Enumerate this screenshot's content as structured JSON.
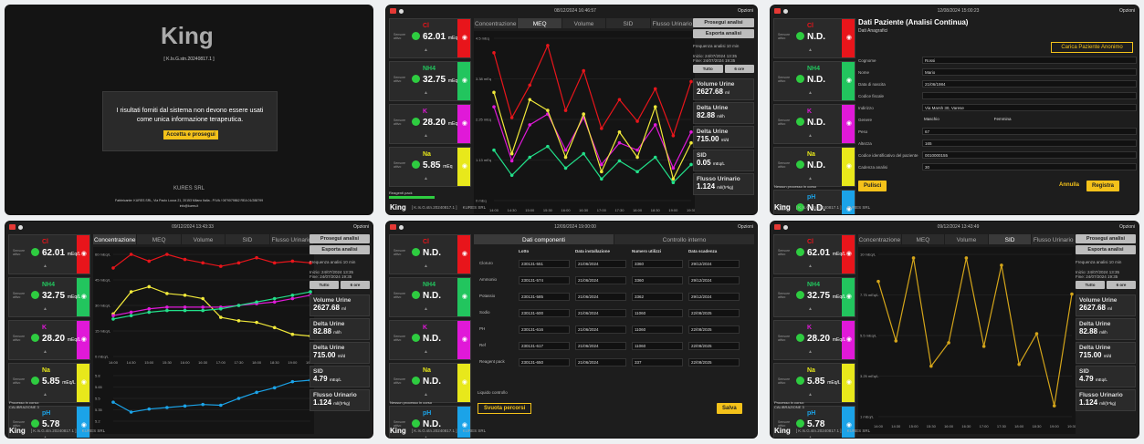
{
  "date_short": "24/07/2024 15:35:35",
  "date_p2": "08/12/2024 16:46:57",
  "date_p3": "12/08/2024 15:00:23",
  "date_p4": "09/12/2024 13:43:33",
  "date_p5": "12/09/2024 19:00:00",
  "date_p6": "09/12/2024 13:43:49",
  "options": "Opzioni",
  "splash": {
    "logo": "King",
    "version": "[ K.Is.G.stn.20240817.1 ]",
    "message": "I risultati forniti dal sistema non devono essere usati come unica informazione terapeutica.",
    "accept": "Accetta e prosegui",
    "company": "KURES SRL",
    "address": "Fabbricante: KURES SRL, Via Paolo Lucca 21, 20153 Milano Italia - P.IVA / 06°9079862 REA 01/288799",
    "email": "info@kures.it"
  },
  "ions": [
    {
      "name": "Cl",
      "value": "62.01",
      "unit": "mEq",
      "unit_l": "mEq/L",
      "color": "#e8151b"
    },
    {
      "name": "NH4",
      "value": "32.75",
      "unit": "mEq",
      "unit_l": "mEq/L",
      "color": "#22c55e"
    },
    {
      "name": "K",
      "value": "28.20",
      "unit": "mEq",
      "unit_l": "mEq/L",
      "color": "#e019d8"
    },
    {
      "name": "Na",
      "value": "5.85",
      "unit": "mEq",
      "unit_l": "mEq/L",
      "color": "#e8e81b"
    },
    {
      "name": "pH",
      "value": "5.78",
      "unit": "",
      "unit_l": "",
      "color": "#1ba3e8"
    }
  ],
  "nd": "N.D.",
  "sensor_label": "Sensore attivo",
  "tabs_analysis": [
    "Concentrazione",
    "MEQ",
    "Volume",
    "SID",
    "Flusso Urinario"
  ],
  "buttons": {
    "proceed": "Prosegui analisi",
    "export": "Esporta analisi",
    "all": "Tutto",
    "hours": "6 ore"
  },
  "freq_label": "Frequenza analisi",
  "freq_value": "10",
  "freq_unit": "min",
  "start": "Inizio: 24/07/2024 13:35",
  "end": "Fine: 24/07/2024 19:35",
  "stats": [
    {
      "title": "Volume Urine",
      "value": "2627.68",
      "unit": "ml"
    },
    {
      "title": "Delta Urine",
      "value": "82.88",
      "unit": "ml/h"
    },
    {
      "title": "Delta Urine",
      "value": "715.00",
      "unit": "ml/d"
    },
    {
      "title": "SID",
      "value": "0.05",
      "unit": "mEq/L"
    },
    {
      "title": "Flusso Urinario",
      "value": "1.124",
      "unit": "ml/(h*kg)"
    }
  ],
  "sid_value": "4.79",
  "process": "Processo in corso:",
  "process_name": "CALIBRAZIONE 3",
  "no_process": "Nessun processo in corso",
  "reagents": "Reagenti pack",
  "footer_version": "[ K.Is.G.stn.20240817.1 ]",
  "footer_company": "KURES SRL",
  "patient": {
    "title": "Dati Paziente (Analisi Continua)",
    "sub": "Dati Anagrafici",
    "load": "Carica Paziente Anonimo",
    "fields": [
      {
        "label": "Cognome",
        "value": "Rossi"
      },
      {
        "label": "Nome",
        "value": "Mario"
      },
      {
        "label": "Data di nascita",
        "value": "21/06/1984"
      },
      {
        "label": "Codice fiscale",
        "value": ""
      },
      {
        "label": "Indirizzo",
        "value": "Via Marsh 30, Varese"
      },
      {
        "label": "Genere",
        "value": "Maschio"
      },
      {
        "label": "Peso",
        "value": "67"
      },
      {
        "label": "Altezza",
        "value": "165"
      },
      {
        "label": "Codice identificativo del paziente",
        "value": "0010000155"
      },
      {
        "label": "Cadenza analisi",
        "value": "30"
      }
    ],
    "female": "Femmina",
    "clean": "Pulisci",
    "cancel": "Annulla",
    "save": "Registra"
  },
  "components": {
    "tab1": "Dati componenti",
    "tab2": "Controllo interno",
    "headers": [
      "Lotto",
      "Data installazione",
      "Numero utilizzi",
      "Data scadenza"
    ],
    "rows": [
      {
        "name": "Cloruro",
        "lot": "230131-551",
        "date": "21/06/2024",
        "uses": "3360",
        "exp": "29/12/2024"
      },
      {
        "name": "Ammonio",
        "lot": "230131-574",
        "date": "21/06/2024",
        "uses": "3360",
        "exp": "29/12/2024"
      },
      {
        "name": "Potassio",
        "lot": "230131-585",
        "date": "21/06/2024",
        "uses": "3362",
        "exp": "29/12/2024"
      },
      {
        "name": "Sodio",
        "lot": "230131-600",
        "date": "21/06/2024",
        "uses": "11060",
        "exp": "22/08/2025"
      },
      {
        "name": "PH",
        "lot": "230131-616",
        "date": "21/06/2024",
        "uses": "11060",
        "exp": "22/08/2025"
      },
      {
        "name": "Ref",
        "lot": "230131-617",
        "date": "21/06/2024",
        "uses": "11060",
        "exp": "22/08/2025"
      },
      {
        "name": "Reagent pack",
        "lot": "230131-650",
        "date": "21/06/2024",
        "uses": "337",
        "exp": "22/08/2025"
      }
    ],
    "liquid": "Liquido controllo",
    "empty": "Svuota percorsi",
    "save": "Salva"
  },
  "chart_data": [
    {
      "type": "line",
      "title": "MEQ",
      "x": [
        "14:00",
        "14:30",
        "15:00",
        "15:30",
        "16:00",
        "16:30",
        "17:00",
        "17:30",
        "18:00",
        "18:30",
        "19:00",
        "19:30"
      ],
      "ylim": [
        0,
        4.5
      ],
      "ylabel": "mEq",
      "series": [
        {
          "name": "Cl",
          "values": [
            4.1,
            2.3,
            3.2,
            4.3,
            2.5,
            3.6,
            2.0,
            2.8,
            2.2,
            3.1,
            1.8,
            3.3
          ]
        },
        {
          "name": "K",
          "values": [
            2.6,
            1.1,
            2.1,
            2.4,
            1.4,
            2.3,
            1.0,
            1.6,
            1.4,
            2.1,
            0.9,
            1.9
          ]
        },
        {
          "name": "Na",
          "values": [
            3.0,
            1.3,
            2.8,
            2.5,
            1.2,
            2.4,
            0.8,
            1.9,
            1.2,
            2.6,
            0.6,
            1.6
          ]
        },
        {
          "name": "NH4",
          "values": [
            1.4,
            0.7,
            1.2,
            1.5,
            0.9,
            1.3,
            0.6,
            1.1,
            0.8,
            1.2,
            0.5,
            1.0
          ]
        }
      ]
    },
    {
      "type": "line",
      "title": "Concentrazione",
      "x": [
        "14:00",
        "14:30",
        "15:00",
        "15:30",
        "16:00",
        "16:30",
        "17:00",
        "17:30",
        "18:00",
        "18:30",
        "19:00",
        "19:30"
      ],
      "ylim": [
        0,
        60
      ],
      "ylabel": "mEq/L",
      "series": [
        {
          "name": "Cl",
          "values": [
            52,
            60,
            56,
            60,
            57,
            55,
            53,
            55,
            58,
            55,
            56,
            55
          ]
        },
        {
          "name": "Na",
          "values": [
            25,
            38,
            41,
            37,
            36,
            34,
            23,
            21,
            20,
            17,
            13,
            12
          ]
        },
        {
          "name": "K",
          "values": [
            24,
            26,
            28,
            29,
            29,
            29,
            29,
            30,
            31,
            32,
            34,
            36
          ]
        },
        {
          "name": "NH4",
          "values": [
            22,
            24,
            26,
            27,
            27,
            27,
            28,
            30,
            32,
            34,
            36,
            38
          ]
        }
      ]
    },
    {
      "type": "line",
      "title": "pH",
      "x": [
        "14:00",
        "14:30",
        "15:00",
        "15:30",
        "16:00",
        "16:30",
        "17:00",
        "17:30",
        "18:00",
        "18:30",
        "19:00",
        "19:30"
      ],
      "ylim": [
        5.2,
        5.8
      ],
      "series": [
        {
          "name": "pH",
          "values": [
            5.45,
            5.32,
            5.36,
            5.38,
            5.4,
            5.42,
            5.41,
            5.5,
            5.58,
            5.64,
            5.72,
            5.74
          ]
        }
      ]
    },
    {
      "type": "line",
      "title": "SID",
      "x": [
        "14:00",
        "14:30",
        "15:00",
        "15:30",
        "16:00",
        "16:30",
        "17:00",
        "17:30",
        "18:00",
        "18:30",
        "19:00",
        "19:30"
      ],
      "ylim": [
        1,
        10
      ],
      "ylabel": "mEq/L",
      "series": [
        {
          "name": "SID",
          "values": [
            8.5,
            5.2,
            9.8,
            3.8,
            5.1,
            9.8,
            4.9,
            9.4,
            3.9,
            5.6,
            1.6,
            7.8
          ]
        }
      ]
    }
  ]
}
